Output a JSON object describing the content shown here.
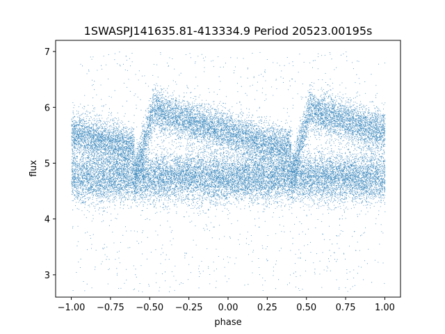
{
  "chart_data": {
    "type": "scatter",
    "title": "1SWASPJ141635.81-413334.9 Period 20523.00195s",
    "xlabel": "phase",
    "ylabel": "flux",
    "xlim": [
      -1.1,
      1.1
    ],
    "ylim": [
      2.6,
      7.2
    ],
    "xticks": [
      -1.0,
      -0.75,
      -0.5,
      -0.25,
      0.0,
      0.25,
      0.5,
      0.75,
      1.0
    ],
    "xtick_labels": [
      "−1.00",
      "−0.75",
      "−0.50",
      "−0.25",
      "0.00",
      "0.25",
      "0.50",
      "0.75",
      "1.00"
    ],
    "yticks": [
      3,
      4,
      5,
      6,
      7
    ],
    "ytick_labels": [
      "3",
      "4",
      "5",
      "6",
      "7"
    ],
    "grid": false,
    "marker_color": "#1f77b4",
    "series": [
      {
        "name": "",
        "shape_description": "Phase-folded light curve, repeated twice over phase -1 to 1",
        "baseline_flux": 4.75,
        "baseline_spread": 0.22,
        "peak_flux": 5.95,
        "rise_start_phase": -0.6,
        "peak_phase": -0.48,
        "decay_end_phase": 0.35,
        "repeat_period_phase": 1.0,
        "outlier_range": [
          2.7,
          7.0
        ],
        "points_approx": 28000
      }
    ]
  }
}
